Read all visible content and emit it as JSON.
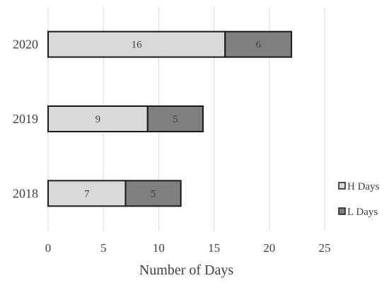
{
  "chart_data": {
    "type": "bar",
    "orientation": "horizontal",
    "stacked": true,
    "categories": [
      "2018",
      "2019",
      "2020"
    ],
    "series": [
      {
        "name": "H Days",
        "values": [
          7,
          9,
          16
        ],
        "color": "#d9d9d9"
      },
      {
        "name": "L Days",
        "values": [
          5,
          5,
          6
        ],
        "color": "#7f7f7f"
      }
    ],
    "title": "",
    "xlabel": "Number of Days",
    "ylabel": "",
    "xlim": [
      0,
      25
    ],
    "xticks": [
      0,
      5,
      10,
      15,
      20,
      25
    ],
    "grid": "vertical",
    "legend_position": "right"
  }
}
